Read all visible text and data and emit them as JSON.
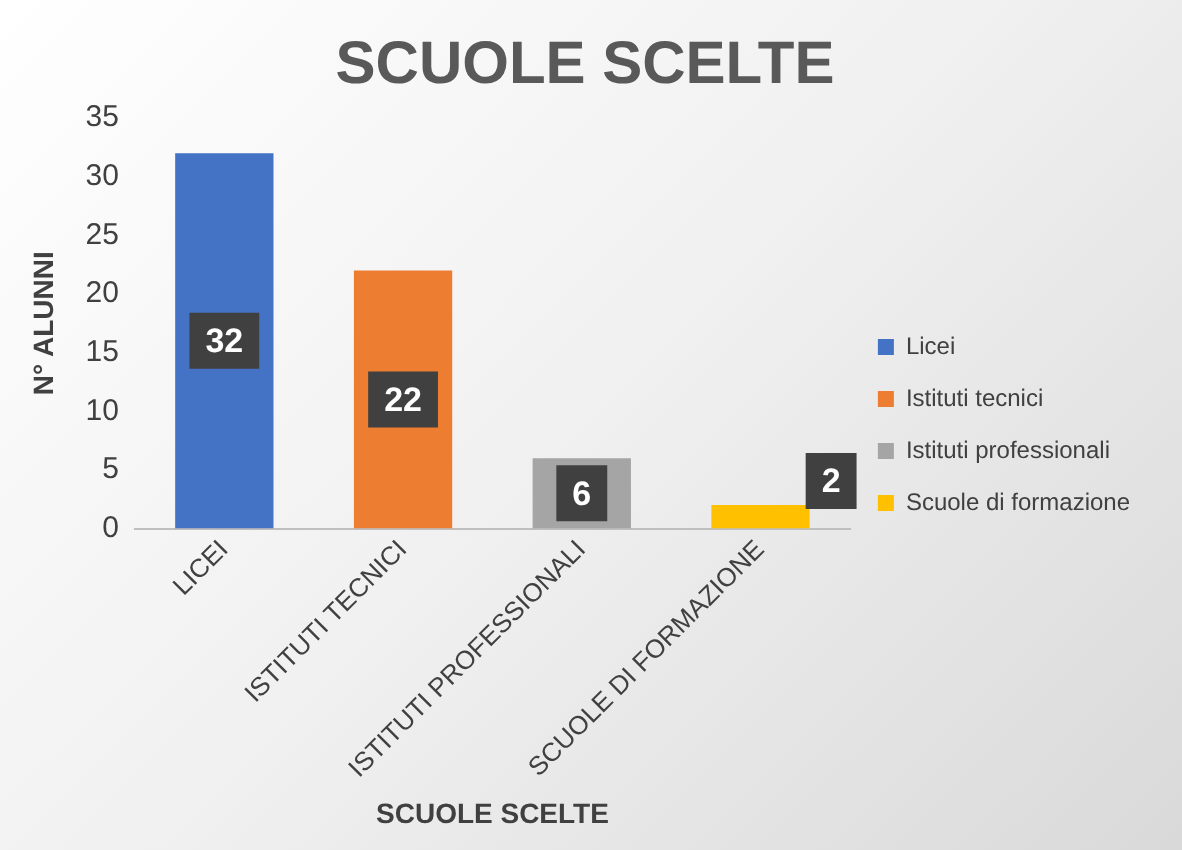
{
  "chart_data": {
    "type": "bar",
    "title": "SCUOLE SCELTE",
    "xlabel": "SCUOLE SCELTE",
    "ylabel": "N° ALUNNI",
    "categories": [
      "LICEI",
      "ISTITUTI TECNICI",
      "ISTITUTI PROFESSIONALI",
      "SCUOLE DI FORMAZIONE"
    ],
    "series": [
      {
        "name": "Licei",
        "color": "#4472c4",
        "values": [
          32,
          null,
          null,
          null
        ]
      },
      {
        "name": "Istituti tecnici",
        "color": "#ed7d31",
        "values": [
          null,
          22,
          null,
          null
        ]
      },
      {
        "name": "Istituti professionali",
        "color": "#a5a5a5",
        "values": [
          null,
          null,
          6,
          null
        ]
      },
      {
        "name": "Scuole di formazione",
        "color": "#ffc000",
        "values": [
          null,
          null,
          null,
          2
        ]
      }
    ],
    "ylim": [
      0,
      35
    ],
    "yticks": [
      0,
      5,
      10,
      15,
      20,
      25,
      30,
      35
    ],
    "grid": false,
    "legend": "right",
    "data_labels": true
  }
}
